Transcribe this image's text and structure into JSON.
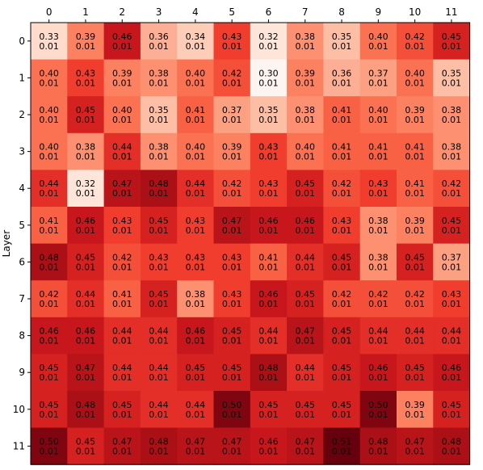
{
  "chart_data": {
    "type": "heatmap",
    "ylabel": "Layer",
    "xlabel": "",
    "x_ticks": [
      "0",
      "1",
      "2",
      "3",
      "4",
      "5",
      "6",
      "7",
      "8",
      "9",
      "10",
      "11"
    ],
    "y_ticks": [
      "0",
      "1",
      "2",
      "3",
      "4",
      "5",
      "6",
      "7",
      "8",
      "9",
      "10",
      "11"
    ],
    "x_axis_position": "top",
    "colormap": "Reds",
    "color_range": [
      0.3,
      0.51
    ],
    "colors": {
      "low": "#fff5f0",
      "high": "#a50f15",
      "text": "#000000"
    },
    "values": [
      [
        0.33,
        0.39,
        0.46,
        0.36,
        0.34,
        0.43,
        0.32,
        0.38,
        0.35,
        0.4,
        0.42,
        0.45
      ],
      [
        0.4,
        0.43,
        0.39,
        0.38,
        0.4,
        0.42,
        0.3,
        0.39,
        0.36,
        0.37,
        0.4,
        0.35
      ],
      [
        0.4,
        0.45,
        0.4,
        0.35,
        0.41,
        0.37,
        0.35,
        0.38,
        0.41,
        0.4,
        0.39,
        0.38
      ],
      [
        0.4,
        0.38,
        0.44,
        0.38,
        0.4,
        0.39,
        0.43,
        0.4,
        0.41,
        0.41,
        0.41,
        0.38
      ],
      [
        0.44,
        0.32,
        0.47,
        0.48,
        0.44,
        0.42,
        0.43,
        0.45,
        0.42,
        0.43,
        0.41,
        0.42
      ],
      [
        0.41,
        0.46,
        0.43,
        0.45,
        0.43,
        0.47,
        0.46,
        0.46,
        0.43,
        0.38,
        0.39,
        0.45
      ],
      [
        0.48,
        0.45,
        0.42,
        0.43,
        0.43,
        0.43,
        0.41,
        0.44,
        0.45,
        0.38,
        0.45,
        0.37
      ],
      [
        0.42,
        0.44,
        0.41,
        0.45,
        0.38,
        0.43,
        0.46,
        0.45,
        0.42,
        0.42,
        0.42,
        0.43
      ],
      [
        0.46,
        0.46,
        0.44,
        0.44,
        0.46,
        0.45,
        0.44,
        0.47,
        0.45,
        0.44,
        0.44,
        0.44
      ],
      [
        0.45,
        0.47,
        0.44,
        0.44,
        0.45,
        0.45,
        0.48,
        0.44,
        0.45,
        0.46,
        0.45,
        0.46
      ],
      [
        0.45,
        0.48,
        0.45,
        0.44,
        0.44,
        0.5,
        0.45,
        0.45,
        0.45,
        0.5,
        0.39,
        0.45
      ],
      [
        0.5,
        0.45,
        0.47,
        0.48,
        0.47,
        0.47,
        0.46,
        0.47,
        0.51,
        0.48,
        0.47,
        0.48
      ]
    ],
    "errors": [
      [
        "0.01",
        "0.01",
        "0.01",
        "0.01",
        "0.01",
        "0.01",
        "0.01",
        "0.01",
        "0.01",
        "0.01",
        "0.01",
        "0.01"
      ],
      [
        "0.01",
        "0.01",
        "0.01",
        "0.01",
        "0.01",
        "0.01",
        "0.01",
        "0.01",
        "0.01",
        "0.01",
        "0.01",
        "0.01"
      ],
      [
        "0.01",
        "0.01",
        "0.01",
        "0.01",
        "0.01",
        "0.01",
        "0.01",
        "0.01",
        "0.01",
        "0.01",
        "0.01",
        "0.01"
      ],
      [
        "0.01",
        "0.01",
        "0.01",
        "0.01",
        "0.01",
        "0.01",
        "0.01",
        "0.01",
        "0.01",
        "0.01",
        "0.01",
        "0.01"
      ],
      [
        "0.01",
        "0.01",
        "0.01",
        "0.01",
        "0.01",
        "0.01",
        "0.01",
        "0.01",
        "0.01",
        "0.01",
        "0.01",
        "0.01"
      ],
      [
        "0.01",
        "0.01",
        "0.01",
        "0.01",
        "0.01",
        "0.01",
        "0.01",
        "0.01",
        "0.01",
        "0.01",
        "0.01",
        "0.01"
      ],
      [
        "0.01",
        "0.01",
        "0.01",
        "0.01",
        "0.01",
        "0.01",
        "0.01",
        "0.01",
        "0.01",
        "0.01",
        "0.01",
        "0.01"
      ],
      [
        "0.01",
        "0.01",
        "0.01",
        "0.01",
        "0.01",
        "0.01",
        "0.01",
        "0.01",
        "0.01",
        "0.01",
        "0.01",
        "0.01"
      ],
      [
        "0.01",
        "0.01",
        "0.01",
        "0.01",
        "0.01",
        "0.01",
        "0.01",
        "0.01",
        "0.01",
        "0.01",
        "0.01",
        "0.01"
      ],
      [
        "0.01",
        "0.01",
        "0.01",
        "0.01",
        "0.01",
        "0.01",
        "0.01",
        "0.01",
        "0.01",
        "0.01",
        "0.01",
        "0.01"
      ],
      [
        "0.01",
        "0.01",
        "0.01",
        "0.01",
        "0.01",
        "0.01",
        "0.01",
        "0.01",
        "0.01",
        "0.01",
        "0.01",
        "0.01"
      ],
      [
        "0.01",
        "0.01",
        "0.01",
        "0.01",
        "0.01",
        "0.01",
        "0.01",
        "0.01",
        "0.01",
        "0.01",
        "0.01",
        "0.01"
      ]
    ]
  }
}
